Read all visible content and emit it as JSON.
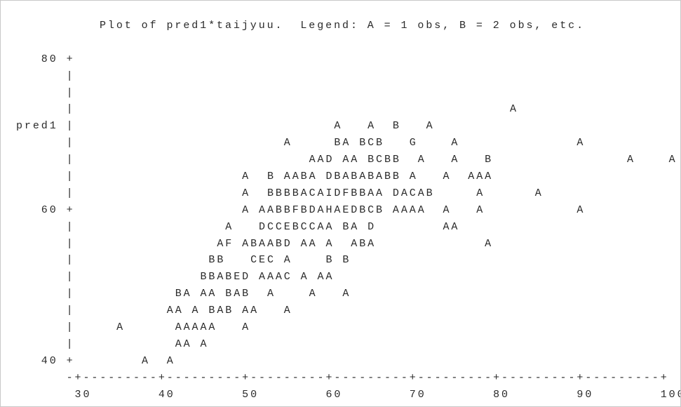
{
  "title": "Plot of pred1*taijyuu.  Legend: A = 1 obs, B = 2 obs, etc.",
  "plot_rows": [
    "   80 +",
    "      |",
    "      |",
    "      |                                                    A",
    "pred1 |                               A   A  B   A",
    "      |                         A     BA BCB   G    A              A",
    "      |                            AAD AA BCBB  A   A   B                A    A",
    "      |                    A  B AABA DBABABABB A   A  AAA",
    "      |                    A  BBBBACAIDFBBAA DACAB     A      A",
    "   60 +                    A AABBFBDAHAEDBCB AAAA  A   A           A",
    "      |                  A   DCCEBCCAA BA D        AA",
    "      |                 AF ABAABD AA A  ABA             A",
    "      |                BB   CEC A    B B",
    "      |               BBABED AAAC A AA",
    "      |            BA AA BAB  A    A   A",
    "      |           AA A BAB AA   A",
    "      |     A      AAAAA   A",
    "      |            AA A",
    "   40 +        A  A"
  ],
  "x_axis_line": "      -+---------+---------+---------+---------+---------+---------+---------+",
  "x_axis_labels": "       30        40        50        60        70        80        90        100"
}
